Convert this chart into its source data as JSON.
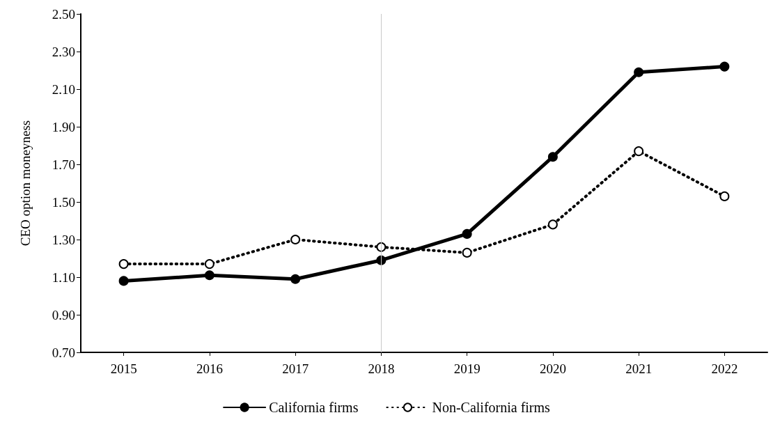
{
  "chart_data": {
    "type": "line",
    "ylabel": "CEO option moneyness",
    "categories": [
      "2015",
      "2016",
      "2017",
      "2018",
      "2019",
      "2020",
      "2021",
      "2022"
    ],
    "series": [
      {
        "name": "California firms",
        "color": "#000000",
        "line_style": "solid",
        "values": [
          1.08,
          1.11,
          1.09,
          1.19,
          1.33,
          1.74,
          2.19,
          2.22
        ]
      },
      {
        "name": "Non-California firms",
        "color": "#000000",
        "line_style": "dotted",
        "values": [
          1.17,
          1.17,
          1.3,
          1.26,
          1.23,
          1.38,
          1.77,
          1.53
        ]
      }
    ],
    "ylim": [
      0.7,
      2.5
    ],
    "yticks": [
      {
        "value": 0.7,
        "label": "0.70"
      },
      {
        "value": 0.9,
        "label": "0.90"
      },
      {
        "value": 1.1,
        "label": "1.10"
      },
      {
        "value": 1.3,
        "label": "1.30"
      },
      {
        "value": 1.5,
        "label": "1.50"
      },
      {
        "value": 1.7,
        "label": "1.70"
      },
      {
        "value": 1.9,
        "label": "1.90"
      },
      {
        "value": 2.1,
        "label": "2.10"
      },
      {
        "value": 2.3,
        "label": "2.30"
      },
      {
        "value": 2.5,
        "label": "2.50"
      }
    ],
    "ref_lines": [
      {
        "axis": "x",
        "value": "2018",
        "color": "#c8c8c8"
      }
    ],
    "marker": "circle",
    "grid": false,
    "legend": "bottom"
  }
}
